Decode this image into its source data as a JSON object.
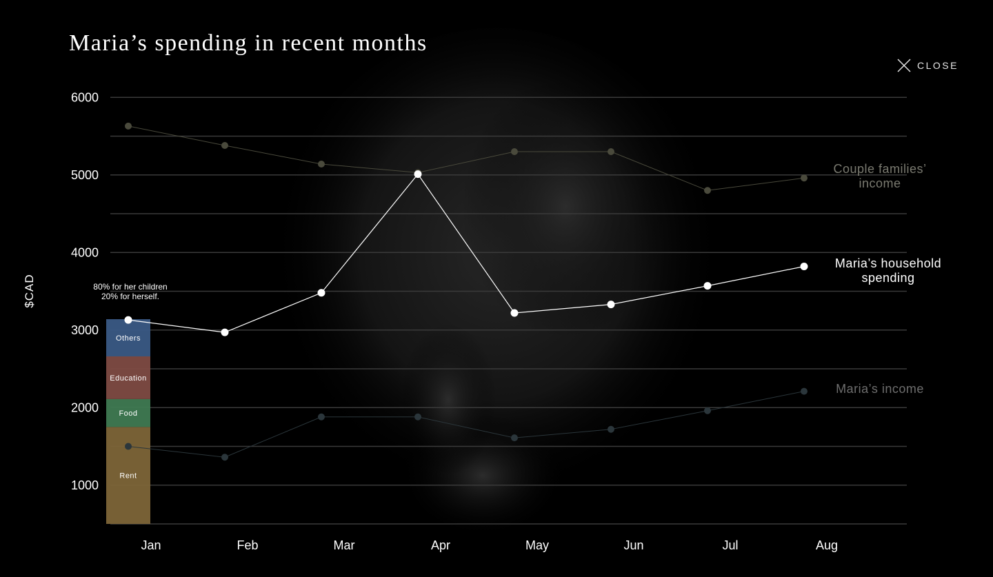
{
  "title": "Maria’s spending in recent months",
  "close": {
    "label": "CLOSE",
    "icon": "close-icon"
  },
  "colors": {
    "background": "#000000",
    "grid": "#3a3a3a",
    "household": "#ffffff",
    "couple": "#4a4a3c",
    "income": "#2b363b",
    "others": "#3a5a85",
    "education": "#7e4b43",
    "food": "#3f7a52",
    "rent": "#7d6538"
  },
  "chart_data": {
    "type": "line",
    "categories": [
      "Jan",
      "Feb",
      "Mar",
      "Apr",
      "May",
      "Jun",
      "Jul",
      "Aug"
    ],
    "ylabel": "$CAD",
    "ylim": [
      500,
      6000
    ],
    "yticks": [
      1000,
      2000,
      3000,
      4000,
      5000,
      6000
    ],
    "series": [
      {
        "key": "couple",
        "name": "Couple families’ income",
        "label_lines": [
          "Couple families’",
          "income"
        ],
        "values": [
          5630,
          5380,
          5140,
          5030,
          5300,
          5300,
          4800,
          4960
        ]
      },
      {
        "key": "household",
        "name": "Maria’s household spending",
        "label_lines": [
          "Maria’s household",
          "spending"
        ],
        "values": [
          3130,
          2970,
          3480,
          5010,
          3220,
          3330,
          3570,
          3820
        ]
      },
      {
        "key": "income",
        "name": "Maria’s income",
        "label_lines": [
          "Maria’s income"
        ],
        "values": [
          1500,
          1360,
          1880,
          1880,
          1610,
          1720,
          1960,
          2210
        ]
      }
    ],
    "breakdown": {
      "category": "Jan",
      "annotation": [
        "80% for her children",
        "20% for herself."
      ],
      "segments": [
        {
          "label": "Rent",
          "value": 1250,
          "color_key": "rent"
        },
        {
          "label": "Food",
          "value": 360,
          "color_key": "food"
        },
        {
          "label": "Education",
          "value": 550,
          "color_key": "education"
        },
        {
          "label": "Others",
          "value": 480,
          "color_key": "others"
        }
      ]
    }
  }
}
